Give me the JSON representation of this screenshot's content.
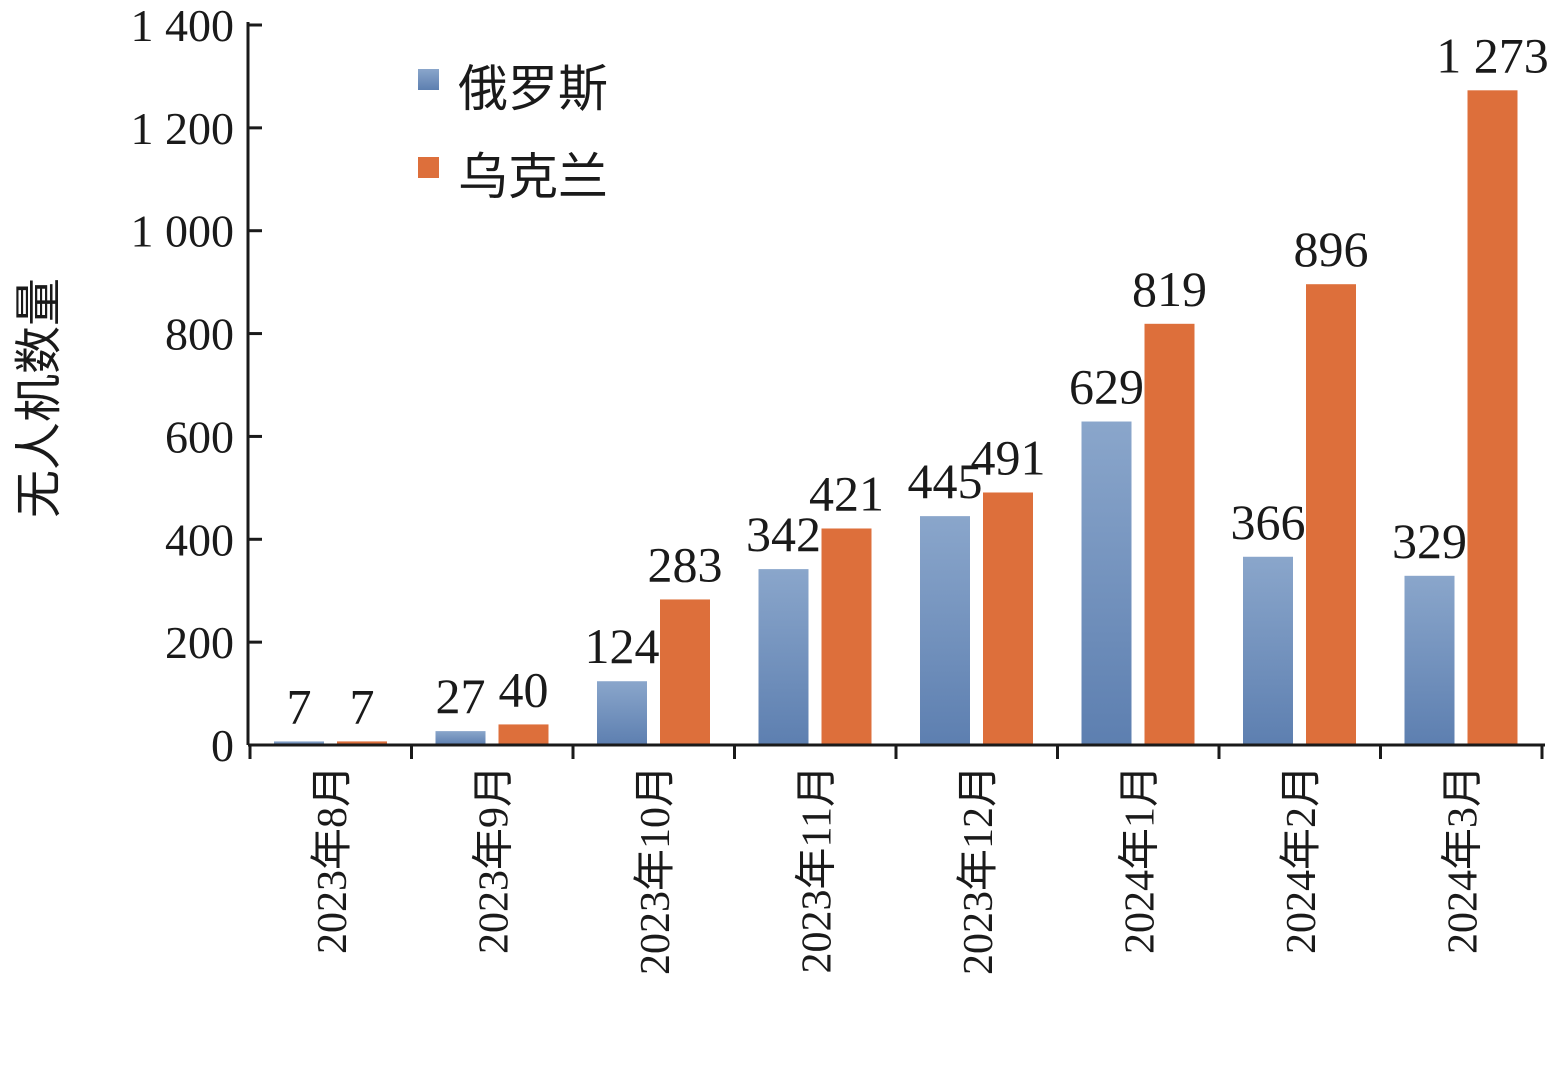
{
  "chart_data": {
    "type": "bar",
    "title": "",
    "xlabel": "",
    "ylabel": "无人机数量",
    "ylim": [
      0,
      1400
    ],
    "yticks": [
      0,
      200,
      400,
      600,
      800,
      1000,
      1200,
      1400
    ],
    "ytick_labels": [
      "0",
      "200",
      "400",
      "600",
      "800",
      "1 000",
      "1 200",
      "1 400"
    ],
    "categories": [
      "2023年8月",
      "2023年9月",
      "2023年10月",
      "2023年11月",
      "2023年12月",
      "2024年1月",
      "2024年2月",
      "2024年3月"
    ],
    "series": [
      {
        "name": "俄罗斯",
        "color": "#7191bd",
        "values": [
          7,
          27,
          124,
          342,
          445,
          629,
          366,
          329
        ],
        "labels": [
          "7",
          "27",
          "124",
          "342",
          "445",
          "629",
          "366",
          "329"
        ]
      },
      {
        "name": "乌克兰",
        "color": "#dd6f3b",
        "values": [
          7,
          40,
          283,
          421,
          491,
          819,
          896,
          1273
        ],
        "labels": [
          "7",
          "40",
          "283",
          "421",
          "491",
          "819",
          "896",
          "1 273"
        ]
      }
    ],
    "legend": {
      "position": "top-left"
    },
    "grid": false
  }
}
